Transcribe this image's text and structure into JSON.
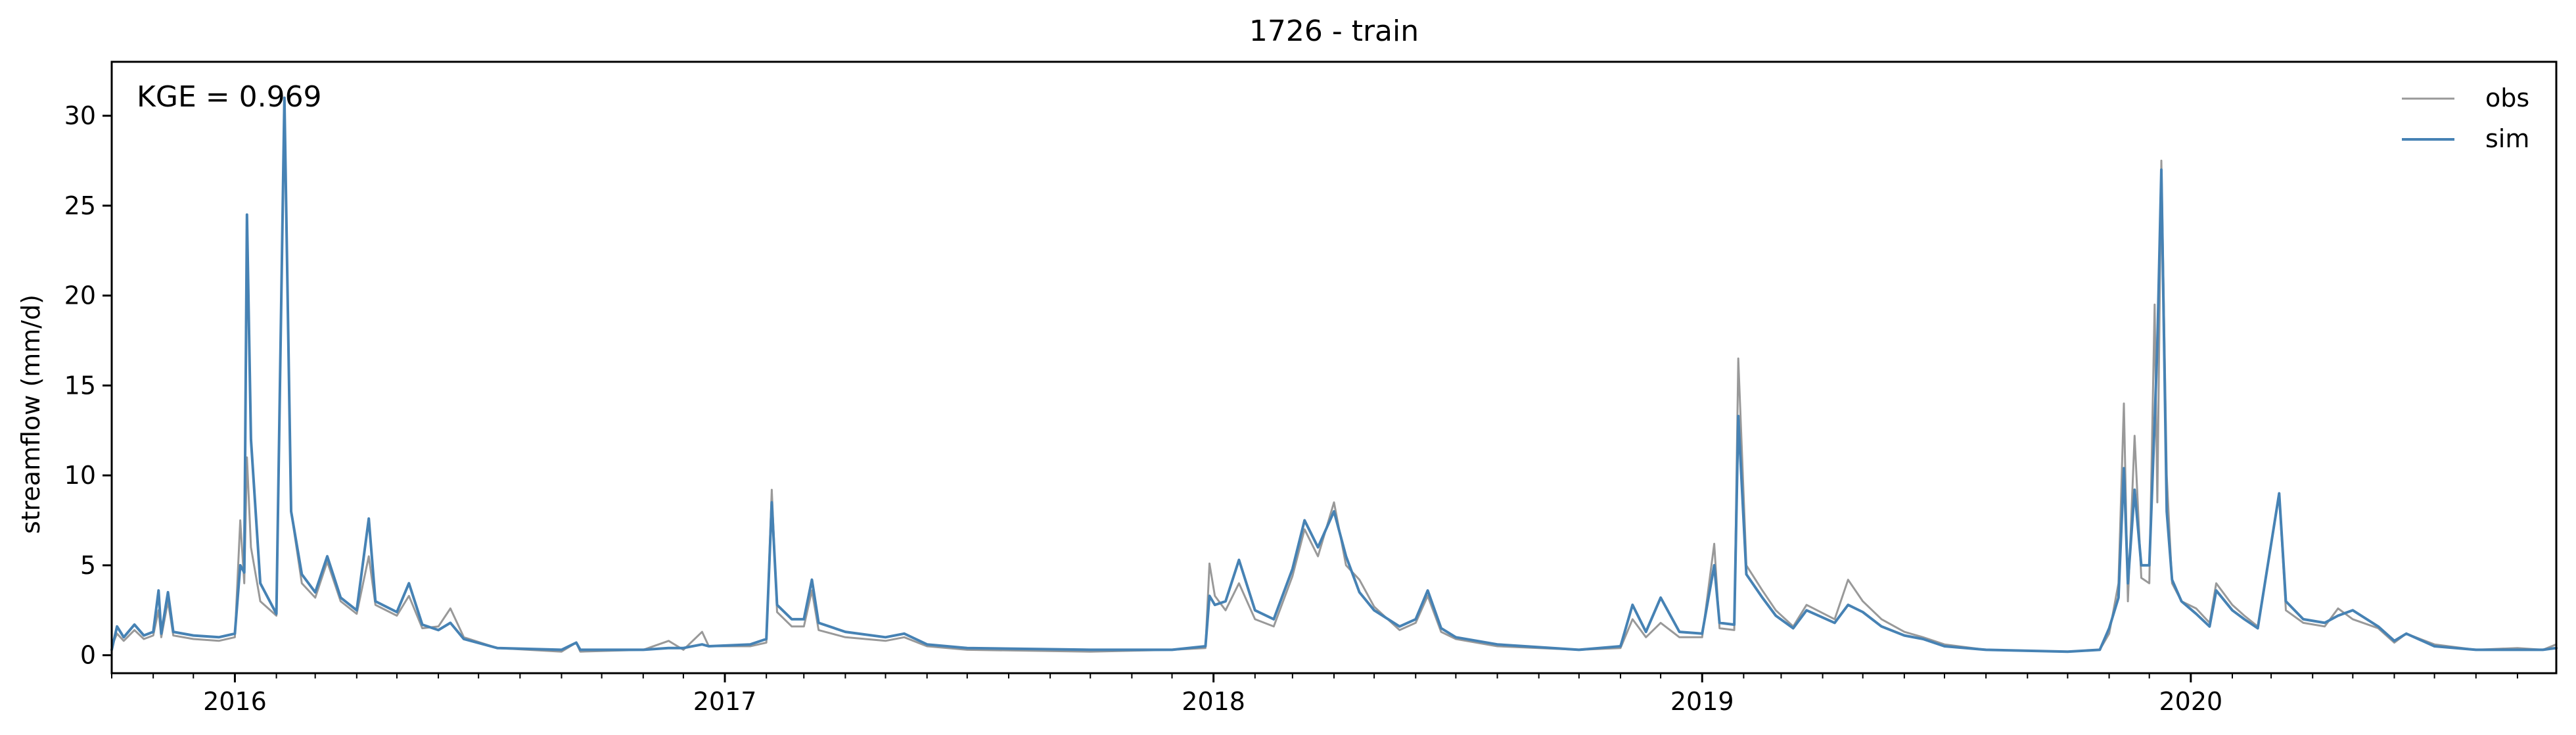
{
  "chart_data": {
    "type": "line",
    "title": "1726 - train",
    "ylabel": "streamflow (mm/d)",
    "xlabel": "",
    "xlim": [
      "2015-10-01",
      "2020-09-30"
    ],
    "ylim": [
      -1.0,
      33.0
    ],
    "y_ticks": [
      0,
      5,
      10,
      15,
      20,
      25,
      30
    ],
    "x_ticks": [
      {
        "date": "2016-01-01",
        "label": "2016"
      },
      {
        "date": "2017-01-01",
        "label": "2017"
      },
      {
        "date": "2018-01-01",
        "label": "2018"
      },
      {
        "date": "2019-01-01",
        "label": "2019"
      },
      {
        "date": "2020-01-01",
        "label": "2020"
      }
    ],
    "grid": false,
    "legend_position": "top-right",
    "annotation": "KGE = 0.969",
    "series": [
      {
        "name": "obs",
        "color": "#999999",
        "points": [
          [
            "2015-10-01",
            0.5
          ],
          [
            "2015-10-05",
            1.2
          ],
          [
            "2015-10-10",
            0.8
          ],
          [
            "2015-10-18",
            1.4
          ],
          [
            "2015-10-25",
            0.9
          ],
          [
            "2015-11-01",
            1.1
          ],
          [
            "2015-11-05",
            2.5
          ],
          [
            "2015-11-07",
            1.0
          ],
          [
            "2015-11-12",
            3.0
          ],
          [
            "2015-11-16",
            1.1
          ],
          [
            "2015-12-01",
            0.9
          ],
          [
            "2015-12-20",
            0.8
          ],
          [
            "2016-01-01",
            1.0
          ],
          [
            "2016-01-05",
            7.5
          ],
          [
            "2016-01-08",
            4.0
          ],
          [
            "2016-01-10",
            11.0
          ],
          [
            "2016-01-13",
            6.0
          ],
          [
            "2016-01-20",
            3.0
          ],
          [
            "2016-02-01",
            2.2
          ],
          [
            "2016-02-07",
            30.5
          ],
          [
            "2016-02-12",
            8.0
          ],
          [
            "2016-02-20",
            4.0
          ],
          [
            "2016-03-01",
            3.2
          ],
          [
            "2016-03-10",
            5.2
          ],
          [
            "2016-03-20",
            3.0
          ],
          [
            "2016-04-01",
            2.3
          ],
          [
            "2016-04-10",
            5.5
          ],
          [
            "2016-04-15",
            2.8
          ],
          [
            "2016-05-01",
            2.2
          ],
          [
            "2016-05-10",
            3.3
          ],
          [
            "2016-05-20",
            1.5
          ],
          [
            "2016-06-01",
            1.6
          ],
          [
            "2016-06-10",
            2.6
          ],
          [
            "2016-06-20",
            1.0
          ],
          [
            "2016-07-15",
            0.4
          ],
          [
            "2016-09-01",
            0.2
          ],
          [
            "2016-09-12",
            0.7
          ],
          [
            "2016-09-15",
            0.2
          ],
          [
            "2016-11-01",
            0.3
          ],
          [
            "2016-11-20",
            0.8
          ],
          [
            "2016-12-01",
            0.3
          ],
          [
            "2016-12-15",
            1.3
          ],
          [
            "2016-12-20",
            0.5
          ],
          [
            "2017-01-20",
            0.5
          ],
          [
            "2017-02-01",
            0.7
          ],
          [
            "2017-02-05",
            9.2
          ],
          [
            "2017-02-09",
            2.4
          ],
          [
            "2017-02-20",
            1.6
          ],
          [
            "2017-03-01",
            1.6
          ],
          [
            "2017-03-07",
            3.6
          ],
          [
            "2017-03-12",
            1.4
          ],
          [
            "2017-04-01",
            1.0
          ],
          [
            "2017-05-01",
            0.8
          ],
          [
            "2017-05-15",
            1.0
          ],
          [
            "2017-06-01",
            0.5
          ],
          [
            "2017-07-01",
            0.3
          ],
          [
            "2017-10-01",
            0.2
          ],
          [
            "2017-12-01",
            0.3
          ],
          [
            "2017-12-26",
            0.4
          ],
          [
            "2017-12-29",
            5.1
          ],
          [
            "2018-01-02",
            3.3
          ],
          [
            "2018-01-10",
            2.5
          ],
          [
            "2018-01-20",
            4.0
          ],
          [
            "2018-02-01",
            2.0
          ],
          [
            "2018-02-15",
            1.6
          ],
          [
            "2018-03-01",
            4.4
          ],
          [
            "2018-03-10",
            7.0
          ],
          [
            "2018-03-20",
            5.5
          ],
          [
            "2018-04-01",
            8.5
          ],
          [
            "2018-04-10",
            5.0
          ],
          [
            "2018-04-20",
            4.2
          ],
          [
            "2018-05-01",
            2.7
          ],
          [
            "2018-05-20",
            1.4
          ],
          [
            "2018-06-01",
            1.8
          ],
          [
            "2018-06-10",
            3.3
          ],
          [
            "2018-06-20",
            1.3
          ],
          [
            "2018-07-01",
            0.9
          ],
          [
            "2018-08-01",
            0.5
          ],
          [
            "2018-10-01",
            0.3
          ],
          [
            "2018-11-01",
            0.4
          ],
          [
            "2018-11-10",
            2.0
          ],
          [
            "2018-11-20",
            1.0
          ],
          [
            "2018-12-01",
            1.8
          ],
          [
            "2018-12-15",
            1.0
          ],
          [
            "2019-01-01",
            1.0
          ],
          [
            "2019-01-10",
            6.2
          ],
          [
            "2019-01-14",
            1.5
          ],
          [
            "2019-01-25",
            1.4
          ],
          [
            "2019-01-28",
            16.5
          ],
          [
            "2019-02-03",
            5.0
          ],
          [
            "2019-02-15",
            3.6
          ],
          [
            "2019-02-25",
            2.5
          ],
          [
            "2019-03-10",
            1.6
          ],
          [
            "2019-03-20",
            2.8
          ],
          [
            "2019-04-10",
            2.0
          ],
          [
            "2019-04-20",
            4.2
          ],
          [
            "2019-05-01",
            3.0
          ],
          [
            "2019-05-15",
            2.0
          ],
          [
            "2019-06-01",
            1.3
          ],
          [
            "2019-06-15",
            1.0
          ],
          [
            "2019-07-01",
            0.6
          ],
          [
            "2019-08-01",
            0.3
          ],
          [
            "2019-10-01",
            0.2
          ],
          [
            "2019-10-25",
            0.3
          ],
          [
            "2019-11-01",
            1.2
          ],
          [
            "2019-11-08",
            4.0
          ],
          [
            "2019-11-12",
            14.0
          ],
          [
            "2019-11-15",
            3.0
          ],
          [
            "2019-11-20",
            12.2
          ],
          [
            "2019-11-25",
            4.3
          ],
          [
            "2019-12-01",
            4.0
          ],
          [
            "2019-12-05",
            19.5
          ],
          [
            "2019-12-07",
            8.5
          ],
          [
            "2019-12-10",
            27.5
          ],
          [
            "2019-12-14",
            10.0
          ],
          [
            "2019-12-18",
            4.0
          ],
          [
            "2019-12-25",
            3.0
          ],
          [
            "2020-01-05",
            2.6
          ],
          [
            "2020-01-15",
            1.8
          ],
          [
            "2020-01-20",
            4.0
          ],
          [
            "2020-02-01",
            2.8
          ],
          [
            "2020-02-10",
            2.2
          ],
          [
            "2020-02-20",
            1.6
          ],
          [
            "2020-03-07",
            8.9
          ],
          [
            "2020-03-12",
            2.5
          ],
          [
            "2020-03-25",
            1.8
          ],
          [
            "2020-04-10",
            1.6
          ],
          [
            "2020-04-20",
            2.6
          ],
          [
            "2020-05-01",
            2.0
          ],
          [
            "2020-05-20",
            1.5
          ],
          [
            "2020-06-01",
            0.7
          ],
          [
            "2020-06-10",
            1.2
          ],
          [
            "2020-07-01",
            0.6
          ],
          [
            "2020-08-01",
            0.3
          ],
          [
            "2020-09-01",
            0.4
          ],
          [
            "2020-09-20",
            0.3
          ],
          [
            "2020-09-30",
            0.6
          ]
        ]
      },
      {
        "name": "sim",
        "color": "#4682b4",
        "points": [
          [
            "2015-10-01",
            0.3
          ],
          [
            "2015-10-05",
            1.6
          ],
          [
            "2015-10-10",
            1.0
          ],
          [
            "2015-10-18",
            1.7
          ],
          [
            "2015-10-25",
            1.1
          ],
          [
            "2015-11-01",
            1.3
          ],
          [
            "2015-11-05",
            3.6
          ],
          [
            "2015-11-07",
            1.2
          ],
          [
            "2015-11-12",
            3.5
          ],
          [
            "2015-11-16",
            1.3
          ],
          [
            "2015-12-01",
            1.1
          ],
          [
            "2015-12-20",
            1.0
          ],
          [
            "2016-01-01",
            1.2
          ],
          [
            "2016-01-05",
            5.0
          ],
          [
            "2016-01-08",
            4.6
          ],
          [
            "2016-01-10",
            24.5
          ],
          [
            "2016-01-13",
            12.0
          ],
          [
            "2016-01-20",
            4.0
          ],
          [
            "2016-02-01",
            2.3
          ],
          [
            "2016-02-07",
            31.0
          ],
          [
            "2016-02-12",
            8.0
          ],
          [
            "2016-02-20",
            4.5
          ],
          [
            "2016-03-01",
            3.5
          ],
          [
            "2016-03-10",
            5.5
          ],
          [
            "2016-03-20",
            3.2
          ],
          [
            "2016-04-01",
            2.5
          ],
          [
            "2016-04-10",
            7.6
          ],
          [
            "2016-04-15",
            3.0
          ],
          [
            "2016-05-01",
            2.4
          ],
          [
            "2016-05-10",
            4.0
          ],
          [
            "2016-05-20",
            1.7
          ],
          [
            "2016-06-01",
            1.4
          ],
          [
            "2016-06-10",
            1.8
          ],
          [
            "2016-06-20",
            0.9
          ],
          [
            "2016-07-15",
            0.4
          ],
          [
            "2016-09-01",
            0.3
          ],
          [
            "2016-09-12",
            0.7
          ],
          [
            "2016-09-15",
            0.3
          ],
          [
            "2016-11-01",
            0.3
          ],
          [
            "2016-11-20",
            0.4
          ],
          [
            "2016-12-01",
            0.4
          ],
          [
            "2016-12-15",
            0.6
          ],
          [
            "2016-12-20",
            0.5
          ],
          [
            "2017-01-20",
            0.6
          ],
          [
            "2017-02-01",
            0.9
          ],
          [
            "2017-02-05",
            8.5
          ],
          [
            "2017-02-09",
            2.8
          ],
          [
            "2017-02-20",
            2.0
          ],
          [
            "2017-03-01",
            2.0
          ],
          [
            "2017-03-07",
            4.2
          ],
          [
            "2017-03-12",
            1.8
          ],
          [
            "2017-04-01",
            1.3
          ],
          [
            "2017-05-01",
            1.0
          ],
          [
            "2017-05-15",
            1.2
          ],
          [
            "2017-06-01",
            0.6
          ],
          [
            "2017-07-01",
            0.4
          ],
          [
            "2017-10-01",
            0.3
          ],
          [
            "2017-12-01",
            0.3
          ],
          [
            "2017-12-26",
            0.5
          ],
          [
            "2017-12-29",
            3.3
          ],
          [
            "2018-01-02",
            2.8
          ],
          [
            "2018-01-10",
            3.0
          ],
          [
            "2018-01-20",
            5.3
          ],
          [
            "2018-02-01",
            2.5
          ],
          [
            "2018-02-15",
            2.0
          ],
          [
            "2018-03-01",
            4.8
          ],
          [
            "2018-03-10",
            7.5
          ],
          [
            "2018-03-20",
            6.0
          ],
          [
            "2018-04-01",
            8.0
          ],
          [
            "2018-04-10",
            5.5
          ],
          [
            "2018-04-20",
            3.5
          ],
          [
            "2018-05-01",
            2.5
          ],
          [
            "2018-05-20",
            1.6
          ],
          [
            "2018-06-01",
            2.0
          ],
          [
            "2018-06-10",
            3.6
          ],
          [
            "2018-06-20",
            1.5
          ],
          [
            "2018-07-01",
            1.0
          ],
          [
            "2018-08-01",
            0.6
          ],
          [
            "2018-10-01",
            0.3
          ],
          [
            "2018-11-01",
            0.5
          ],
          [
            "2018-11-10",
            2.8
          ],
          [
            "2018-11-20",
            1.3
          ],
          [
            "2018-12-01",
            3.2
          ],
          [
            "2018-12-15",
            1.3
          ],
          [
            "2019-01-01",
            1.2
          ],
          [
            "2019-01-10",
            5.0
          ],
          [
            "2019-01-14",
            1.8
          ],
          [
            "2019-01-25",
            1.7
          ],
          [
            "2019-01-28",
            13.3
          ],
          [
            "2019-02-03",
            4.5
          ],
          [
            "2019-02-15",
            3.2
          ],
          [
            "2019-02-25",
            2.2
          ],
          [
            "2019-03-10",
            1.5
          ],
          [
            "2019-03-20",
            2.5
          ],
          [
            "2019-04-10",
            1.8
          ],
          [
            "2019-04-20",
            2.8
          ],
          [
            "2019-05-01",
            2.4
          ],
          [
            "2019-05-15",
            1.6
          ],
          [
            "2019-06-01",
            1.1
          ],
          [
            "2019-06-15",
            0.9
          ],
          [
            "2019-07-01",
            0.5
          ],
          [
            "2019-08-01",
            0.3
          ],
          [
            "2019-10-01",
            0.2
          ],
          [
            "2019-10-25",
            0.3
          ],
          [
            "2019-11-01",
            1.5
          ],
          [
            "2019-11-08",
            3.2
          ],
          [
            "2019-11-12",
            10.4
          ],
          [
            "2019-11-15",
            4.0
          ],
          [
            "2019-11-20",
            9.2
          ],
          [
            "2019-11-25",
            5.0
          ],
          [
            "2019-12-01",
            5.0
          ],
          [
            "2019-12-05",
            13.0
          ],
          [
            "2019-12-07",
            17.2
          ],
          [
            "2019-12-10",
            27.0
          ],
          [
            "2019-12-14",
            8.0
          ],
          [
            "2019-12-18",
            4.2
          ],
          [
            "2019-12-25",
            3.0
          ],
          [
            "2020-01-05",
            2.3
          ],
          [
            "2020-01-15",
            1.6
          ],
          [
            "2020-01-20",
            3.6
          ],
          [
            "2020-02-01",
            2.5
          ],
          [
            "2020-02-10",
            2.0
          ],
          [
            "2020-02-20",
            1.5
          ],
          [
            "2020-03-07",
            9.0
          ],
          [
            "2020-03-12",
            3.0
          ],
          [
            "2020-03-25",
            2.0
          ],
          [
            "2020-04-10",
            1.8
          ],
          [
            "2020-04-20",
            2.2
          ],
          [
            "2020-05-01",
            2.5
          ],
          [
            "2020-05-20",
            1.6
          ],
          [
            "2020-06-01",
            0.8
          ],
          [
            "2020-06-10",
            1.2
          ],
          [
            "2020-07-01",
            0.5
          ],
          [
            "2020-08-01",
            0.3
          ],
          [
            "2020-09-01",
            0.3
          ],
          [
            "2020-09-20",
            0.3
          ],
          [
            "2020-09-30",
            0.4
          ]
        ]
      }
    ]
  }
}
